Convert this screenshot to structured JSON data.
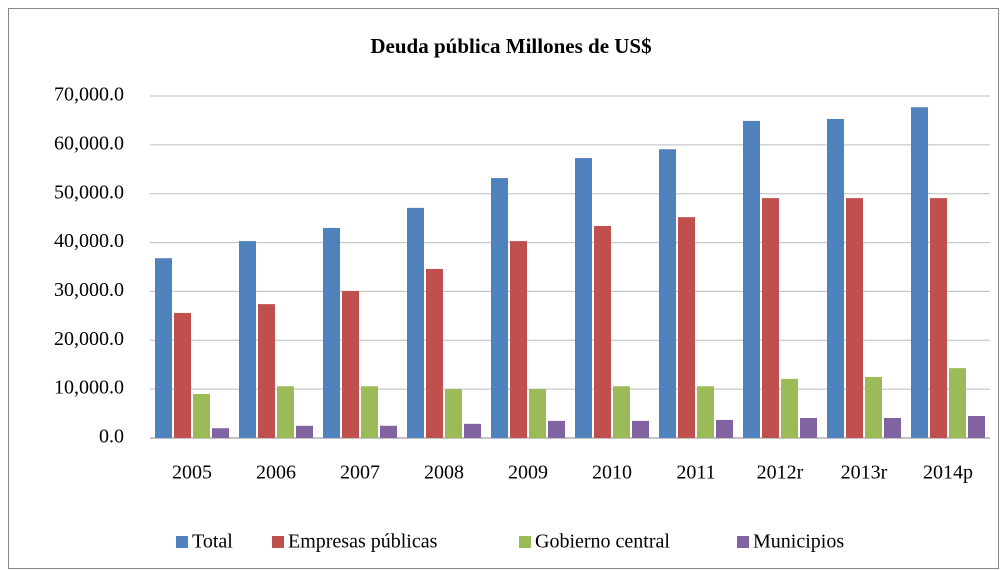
{
  "chart_data": {
    "type": "bar",
    "title": "Deuda pública  Millones de US$",
    "categories": [
      "2005",
      "2006",
      "2007",
      "2008",
      "2009",
      "2010",
      "2011",
      "2012r",
      "2013r",
      "2014p"
    ],
    "series": [
      {
        "name": "Total",
        "color": "#4f81bd",
        "values": [
          36800,
          40300,
          43000,
          47100,
          53200,
          57300,
          59100,
          64900,
          65300,
          67700
        ]
      },
      {
        "name": "Empresas públicas",
        "color": "#c0504d",
        "values": [
          25600,
          27400,
          30100,
          34600,
          40300,
          43400,
          45200,
          49100,
          49100,
          49100
        ]
      },
      {
        "name": "Gobierno central",
        "color": "#9bbb59",
        "values": [
          9000,
          10600,
          10600,
          10000,
          10000,
          10600,
          10600,
          12100,
          12500,
          14300
        ]
      },
      {
        "name": "Municipios",
        "color": "#8064a2",
        "values": [
          2000,
          2500,
          2500,
          2900,
          3500,
          3500,
          3700,
          4100,
          4100,
          4500
        ]
      }
    ],
    "ylim": [
      0,
      70000
    ],
    "yticks": [
      {
        "value": 0,
        "label": "0.0"
      },
      {
        "value": 10000,
        "label": "10,000.0"
      },
      {
        "value": 20000,
        "label": "20,000.0"
      },
      {
        "value": 30000,
        "label": "30,000.0"
      },
      {
        "value": 40000,
        "label": "40,000.0"
      },
      {
        "value": 50000,
        "label": "50,000.0"
      },
      {
        "value": 60000,
        "label": "60,000.0"
      },
      {
        "value": 70000,
        "label": "70,000.0"
      }
    ],
    "grid": true,
    "legend": "bottom"
  }
}
